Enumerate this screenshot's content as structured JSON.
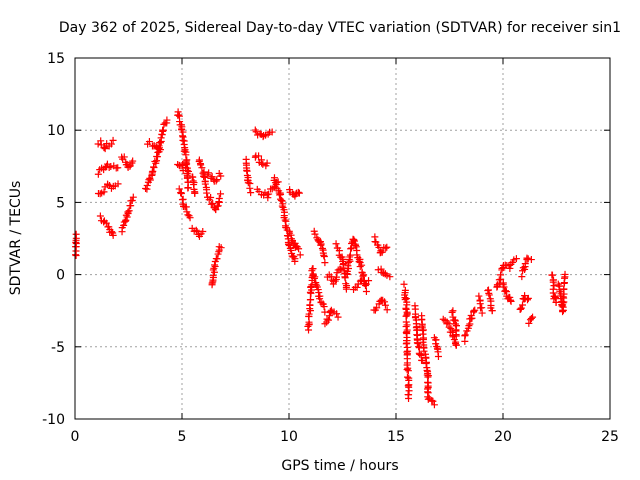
{
  "chart_data": {
    "type": "scatter",
    "title": "Day 362 of 2025, Sidereal Day-to-day VTEC variation (SDTVAR) for receiver sin1",
    "xlabel": "GPS time / hours",
    "ylabel": "SDTVAR / TECUs",
    "xlim": [
      0,
      25
    ],
    "ylim": [
      -10,
      15
    ],
    "x_ticks": [
      "0",
      "5",
      "10",
      "15",
      "20",
      "25"
    ],
    "y_ticks": [
      "-10",
      "-5",
      "0",
      "5",
      "10",
      "15"
    ],
    "grid": true,
    "marker": "+",
    "marker_color": "#ff0000",
    "series": [
      {
        "name": "sin1",
        "segments": [
          [
            [
              0.05,
              1.3
            ],
            [
              0.05,
              2.8
            ]
          ],
          [
            [
              1.1,
              9.2
            ],
            [
              1.4,
              8.8
            ],
            [
              1.8,
              9.2
            ]
          ],
          [
            [
              1.1,
              7.0
            ],
            [
              1.5,
              7.6
            ],
            [
              2.0,
              7.4
            ]
          ],
          [
            [
              1.1,
              5.5
            ],
            [
              1.5,
              6.1
            ],
            [
              2.0,
              6.2
            ]
          ],
          [
            [
              1.2,
              3.9
            ],
            [
              1.6,
              3.2
            ],
            [
              1.8,
              2.6
            ]
          ],
          [
            [
              2.2,
              8.3
            ],
            [
              2.5,
              7.5
            ],
            [
              2.7,
              8.0
            ]
          ],
          [
            [
              2.2,
              3.0
            ],
            [
              2.5,
              4.3
            ],
            [
              2.7,
              5.3
            ]
          ],
          [
            [
              3.3,
              5.8
            ],
            [
              3.6,
              7.0
            ],
            [
              3.9,
              8.5
            ],
            [
              4.1,
              10.0
            ],
            [
              4.3,
              10.8
            ]
          ],
          [
            [
              3.4,
              9.2
            ],
            [
              3.7,
              9.0
            ],
            [
              4.0,
              8.5
            ]
          ],
          [
            [
              4.8,
              11.3
            ],
            [
              5.0,
              10.0
            ],
            [
              5.2,
              8.0
            ],
            [
              5.3,
              6.0
            ]
          ],
          [
            [
              4.8,
              7.8
            ],
            [
              5.0,
              7.5
            ],
            [
              5.3,
              7.0
            ]
          ],
          [
            [
              4.9,
              6.0
            ],
            [
              5.1,
              4.8
            ],
            [
              5.4,
              4.0
            ]
          ],
          [
            [
              5.5,
              6.8
            ],
            [
              5.6,
              5.5
            ]
          ],
          [
            [
              5.5,
              3.2
            ],
            [
              5.8,
              2.8
            ],
            [
              6.0,
              3.0
            ]
          ],
          [
            [
              5.8,
              8.0
            ],
            [
              6.0,
              7.0
            ],
            [
              6.2,
              5.5
            ]
          ],
          [
            [
              6.2,
              7.0
            ],
            [
              6.5,
              6.5
            ],
            [
              6.8,
              7.0
            ]
          ],
          [
            [
              6.3,
              5.3
            ],
            [
              6.6,
              4.5
            ],
            [
              6.8,
              5.5
            ]
          ],
          [
            [
              6.4,
              -0.8
            ],
            [
              6.5,
              0.5
            ],
            [
              6.8,
              2.0
            ]
          ],
          [
            [
              8.0,
              8.0
            ],
            [
              8.1,
              6.5
            ],
            [
              8.2,
              5.8
            ]
          ],
          [
            [
              8.4,
              10.0
            ],
            [
              8.8,
              9.5
            ],
            [
              9.2,
              9.8
            ]
          ],
          [
            [
              8.4,
              8.3
            ],
            [
              8.7,
              7.8
            ],
            [
              9.0,
              7.6
            ]
          ],
          [
            [
              8.5,
              5.8
            ],
            [
              9.0,
              5.5
            ],
            [
              9.5,
              6.5
            ]
          ],
          [
            [
              9.3,
              6.7
            ],
            [
              9.6,
              5.5
            ],
            [
              9.8,
              4.0
            ],
            [
              10.0,
              2.0
            ],
            [
              10.3,
              0.8
            ]
          ],
          [
            [
              10.0,
              6.0
            ],
            [
              10.3,
              5.5
            ],
            [
              10.5,
              5.8
            ]
          ],
          [
            [
              10.0,
              3.0
            ],
            [
              10.3,
              2.0
            ],
            [
              10.5,
              1.5
            ]
          ],
          [
            [
              10.9,
              -3.9
            ],
            [
              11.1,
              0.3
            ],
            [
              11.4,
              -1.5
            ],
            [
              11.7,
              -2.5
            ]
          ],
          [
            [
              11.2,
              3.0
            ],
            [
              11.5,
              2.0
            ],
            [
              11.7,
              1.0
            ]
          ],
          [
            [
              11.7,
              -3.5
            ],
            [
              12.0,
              -2.5
            ],
            [
              12.3,
              -2.8
            ]
          ],
          [
            [
              11.8,
              0.0
            ],
            [
              12.1,
              -0.5
            ],
            [
              12.4,
              0.5
            ]
          ],
          [
            [
              12.2,
              2.0
            ],
            [
              12.5,
              1.0
            ],
            [
              12.7,
              -1.0
            ]
          ],
          [
            [
              12.7,
              0.0
            ],
            [
              13.0,
              2.5
            ],
            [
              13.3,
              1.0
            ],
            [
              13.6,
              -1.0
            ]
          ],
          [
            [
              13.0,
              -1.0
            ],
            [
              13.4,
              -0.5
            ],
            [
              13.7,
              -0.5
            ]
          ],
          [
            [
              14.0,
              -2.5
            ],
            [
              14.3,
              -1.8
            ],
            [
              14.6,
              -2.3
            ]
          ],
          [
            [
              14.0,
              2.5
            ],
            [
              14.3,
              1.5
            ],
            [
              14.6,
              2.0
            ]
          ],
          [
            [
              14.2,
              0.5
            ],
            [
              14.5,
              0.0
            ],
            [
              14.7,
              0.0
            ]
          ],
          [
            [
              15.4,
              -0.8
            ],
            [
              15.5,
              -2.5
            ],
            [
              15.5,
              -4.5
            ],
            [
              15.6,
              -8.5
            ]
          ],
          [
            [
              15.9,
              -2.3
            ],
            [
              16.0,
              -4.5
            ],
            [
              16.2,
              -6.0
            ]
          ],
          [
            [
              16.2,
              -2.8
            ],
            [
              16.3,
              -5.0
            ],
            [
              16.5,
              -7.0
            ],
            [
              16.5,
              -8.5
            ],
            [
              16.8,
              -9.0
            ]
          ],
          [
            [
              16.8,
              -4.2
            ],
            [
              17.0,
              -5.5
            ]
          ],
          [
            [
              17.2,
              -3.0
            ],
            [
              17.5,
              -3.5
            ],
            [
              17.7,
              -4.5
            ]
          ],
          [
            [
              17.6,
              -2.5
            ],
            [
              17.8,
              -3.5
            ],
            [
              17.8,
              -5.0
            ]
          ],
          [
            [
              18.2,
              -4.5
            ],
            [
              18.5,
              -3.0
            ],
            [
              18.7,
              -2.5
            ]
          ],
          [
            [
              18.9,
              -1.5
            ],
            [
              19.0,
              -2.5
            ]
          ],
          [
            [
              19.3,
              -1.0
            ],
            [
              19.5,
              -2.5
            ]
          ],
          [
            [
              19.7,
              -1.0
            ],
            [
              20.0,
              0.5
            ],
            [
              20.3,
              0.5
            ],
            [
              20.6,
              1.0
            ]
          ],
          [
            [
              20.0,
              -0.5
            ],
            [
              20.2,
              -1.5
            ],
            [
              20.4,
              -2.0
            ]
          ],
          [
            [
              20.8,
              -2.5
            ],
            [
              21.0,
              -1.5
            ],
            [
              21.2,
              -1.8
            ]
          ],
          [
            [
              20.9,
              0.0
            ],
            [
              21.1,
              1.0
            ],
            [
              21.3,
              1.2
            ]
          ],
          [
            [
              21.2,
              -3.3
            ],
            [
              21.4,
              -3.0
            ]
          ],
          [
            [
              22.3,
              0.0
            ],
            [
              22.4,
              -1.5
            ],
            [
              22.5,
              -2.0
            ]
          ],
          [
            [
              22.6,
              -0.5
            ],
            [
              22.8,
              -2.5
            ],
            [
              22.9,
              0.0
            ]
          ]
        ]
      }
    ]
  }
}
